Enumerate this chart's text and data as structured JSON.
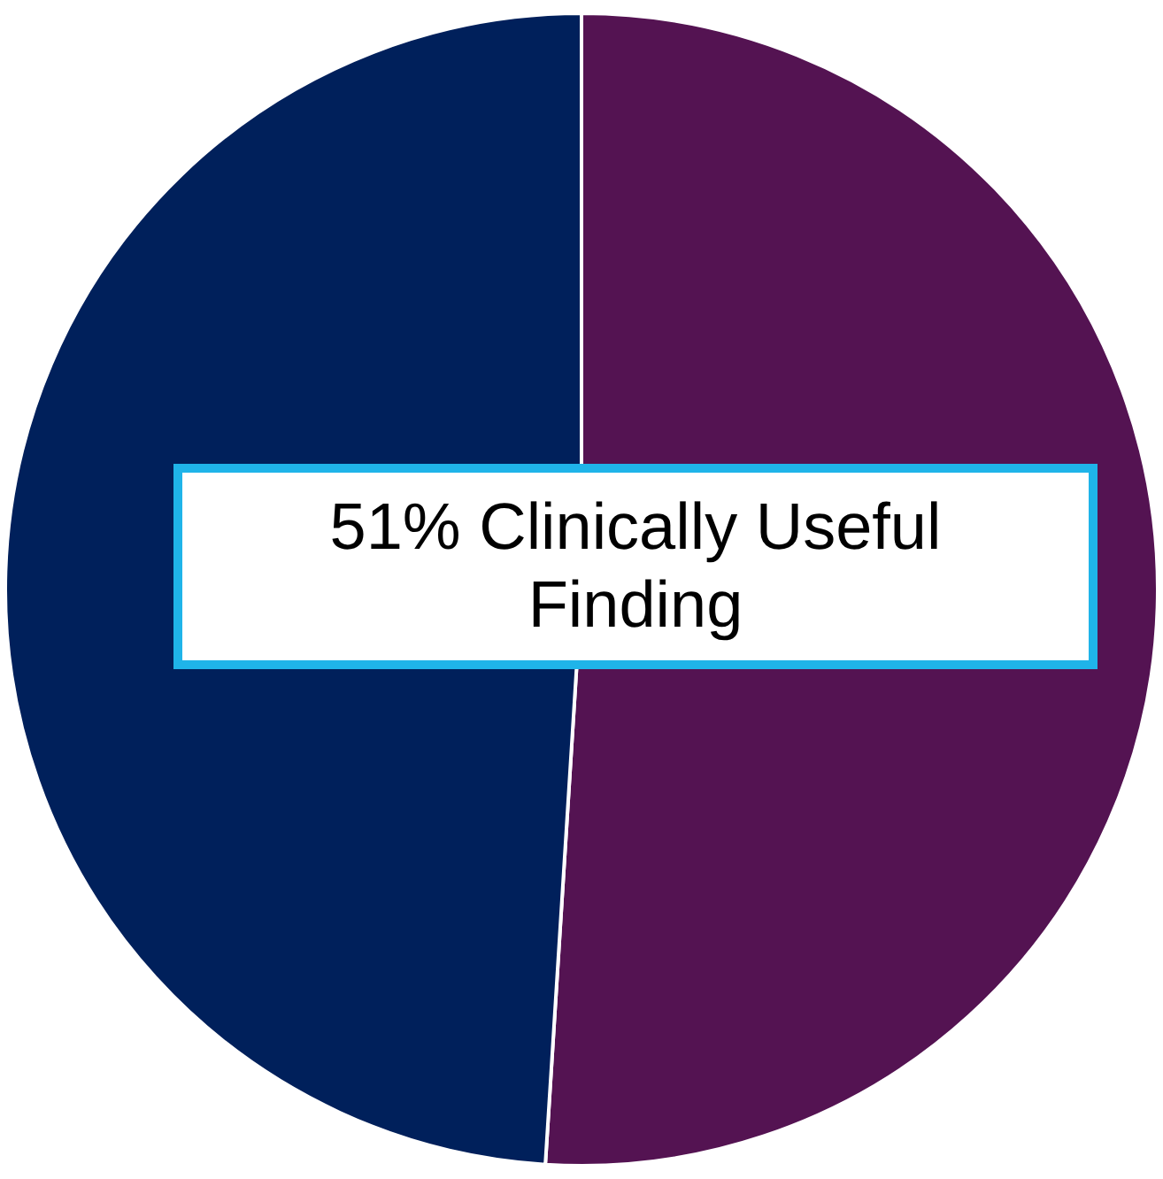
{
  "chart_data": {
    "type": "pie",
    "categories": [
      null,
      null
    ],
    "values": [
      51,
      49
    ],
    "colors": [
      "#541352",
      "#00205b"
    ],
    "annotations": [
      "51% Clinically Useful Finding"
    ]
  }
}
